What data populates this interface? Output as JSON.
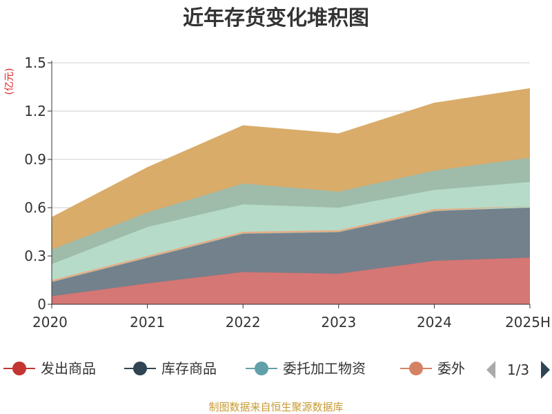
{
  "chart_data": {
    "type": "area",
    "stacked": true,
    "title": "近年存货变化堆积图",
    "unit_label": "(亿元)",
    "x": [
      "2020",
      "2021",
      "2022",
      "2023",
      "2024",
      "2025H"
    ],
    "ylim": [
      0,
      1.5
    ],
    "yticks": [
      "0",
      "0.3",
      "0.6",
      "0.9",
      "1.2",
      "1.5"
    ],
    "grid": true,
    "series": [
      {
        "name": "发出商品",
        "color": "#d3706d",
        "values": [
          0.05,
          0.13,
          0.2,
          0.19,
          0.27,
          0.29
        ]
      },
      {
        "name": "库存商品",
        "color": "#6b7a86",
        "values": [
          0.09,
          0.16,
          0.24,
          0.26,
          0.31,
          0.31
        ]
      },
      {
        "name": "委托加工物资",
        "color": "#b0d8c6",
        "values": [
          0.0,
          0.0,
          0.0,
          0.0,
          0.0,
          0.01
        ]
      },
      {
        "name": "委外",
        "color": "#e8a87c",
        "values": [
          0.01,
          0.01,
          0.01,
          0.01,
          0.01,
          0.0
        ]
      },
      {
        "name": "",
        "color": "#b3d9c6",
        "values": [
          0.1,
          0.18,
          0.17,
          0.14,
          0.12,
          0.15
        ]
      },
      {
        "name": "",
        "color": "#9ab8a6",
        "values": [
          0.09,
          0.09,
          0.13,
          0.1,
          0.12,
          0.15
        ]
      },
      {
        "name": "",
        "color": "#d8a862",
        "values": [
          0.2,
          0.28,
          0.36,
          0.36,
          0.42,
          0.43
        ]
      }
    ],
    "legend": {
      "placement": "bottom",
      "items": [
        {
          "name": "发出商品",
          "color": "#c23531",
          "line": "#c23531"
        },
        {
          "name": "库存商品",
          "color": "#2f4554",
          "line": "#2f4554"
        },
        {
          "name": "委托加工物资",
          "color": "#61a0a8",
          "line": "#61a0a8"
        },
        {
          "name": "委外",
          "color": "#d48265",
          "line": "#d48265"
        }
      ],
      "page": "1/3"
    },
    "source": "制图数据来自恒生聚源数据库"
  }
}
